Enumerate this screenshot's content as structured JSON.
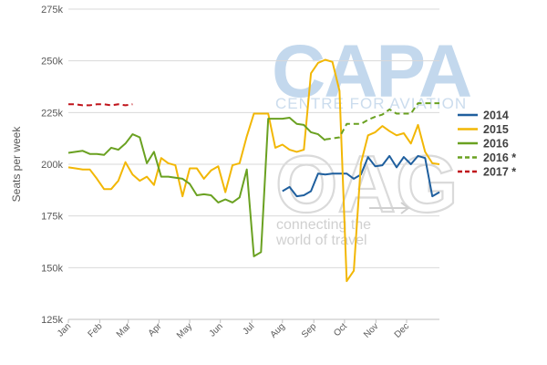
{
  "watermarks": {
    "capa_logo": "CAPA",
    "capa_sub": "CENTRE FOR AVIATION",
    "oag_logo": "OAG",
    "oag_tag_line1": "connecting the",
    "oag_tag_line2": "world of travel"
  },
  "chart_data": {
    "type": "line",
    "title": "",
    "ylabel": "Seats per week",
    "xlabel": "",
    "ylim": [
      125000,
      275000
    ],
    "yticks": [
      125000,
      150000,
      175000,
      200000,
      225000,
      250000,
      275000
    ],
    "ytick_labels": [
      "125k",
      "150k",
      "175k",
      "200k",
      "225k",
      "250k",
      "275k"
    ],
    "x_unit": "week of year",
    "xlim": [
      1,
      53
    ],
    "xticks": [
      1,
      5.4,
      9.4,
      13.7,
      18,
      22.3,
      26.7,
      31,
      35.4,
      39.7,
      44.1,
      48.4
    ],
    "xtick_labels": [
      "Jan",
      "Feb",
      "Mar",
      "Apr",
      "May",
      "Jun",
      "Jul",
      "Aug",
      "Sep",
      "Oct",
      "Nov",
      "Dec"
    ],
    "grid": true,
    "legend_position": "right",
    "series": [
      {
        "name": "2014",
        "color": "#1f5f9e",
        "dash": "solid",
        "weeks": [
          31,
          32,
          33,
          34,
          35,
          36,
          37,
          38,
          39,
          40,
          41,
          42,
          43,
          44,
          45,
          46,
          47,
          48,
          49,
          50,
          51,
          52,
          53
        ],
        "values": [
          187000,
          189000,
          184500,
          185000,
          187000,
          195500,
          195000,
          195500,
          195500,
          195500,
          193000,
          195000,
          203500,
          199000,
          199500,
          204000,
          198500,
          203500,
          200000,
          204000,
          203000,
          184500,
          186500
        ]
      },
      {
        "name": "2015",
        "color": "#f2b705",
        "dash": "solid",
        "weeks": [
          1,
          2,
          3,
          4,
          5,
          6,
          7,
          8,
          9,
          10,
          11,
          12,
          13,
          14,
          15,
          16,
          17,
          18,
          19,
          20,
          21,
          22,
          23,
          24,
          25,
          26,
          27,
          28,
          29,
          30,
          31,
          32,
          33,
          34,
          35,
          36,
          37,
          38,
          39,
          40,
          41,
          42,
          43,
          44,
          45,
          46,
          47,
          48,
          49,
          50,
          51,
          52,
          53
        ],
        "values": [
          198500,
          198000,
          197500,
          197500,
          193000,
          188000,
          188000,
          192000,
          201000,
          195000,
          192000,
          194000,
          190000,
          203000,
          200500,
          199500,
          184500,
          198000,
          198000,
          193000,
          197000,
          199000,
          186500,
          199500,
          200500,
          213500,
          224500,
          224500,
          224500,
          208000,
          209500,
          207000,
          206000,
          207000,
          244000,
          249000,
          250500,
          249500,
          235500,
          143500,
          148500,
          200500,
          214000,
          215500,
          218500,
          216000,
          214000,
          215000,
          210000,
          219000,
          206000,
          200500,
          200000
        ]
      },
      {
        "name": "2016",
        "color": "#6aa121",
        "dash": "solid",
        "weeks": [
          1,
          2,
          3,
          4,
          5,
          6,
          7,
          8,
          9,
          10,
          11,
          12,
          13,
          14,
          15,
          16,
          17,
          18,
          19,
          20,
          21,
          22,
          23,
          24,
          25,
          26,
          27,
          28,
          29,
          30,
          31,
          32,
          33,
          34,
          35,
          36,
          37
        ],
        "values": [
          205500,
          206000,
          206500,
          205000,
          205000,
          204500,
          208000,
          207000,
          210000,
          214500,
          213000,
          200500,
          206000,
          194000,
          194000,
          193500,
          193000,
          190500,
          185000,
          185500,
          185000,
          181500,
          183000,
          181500,
          184000,
          197500,
          155500,
          157500,
          222000,
          222000,
          222000,
          222500,
          219500,
          219000,
          215500,
          214500,
          211500
        ]
      },
      {
        "name": "2016 *",
        "color": "#6aa121",
        "dash": "dashed",
        "weeks": [
          37,
          38,
          39,
          40,
          41,
          42,
          43,
          44,
          45,
          46,
          47,
          48,
          49,
          50,
          51,
          52,
          53
        ],
        "values": [
          212000,
          212500,
          213000,
          219500,
          219500,
          219500,
          221500,
          223000,
          224000,
          226500,
          224500,
          224500,
          224500,
          229500,
          229500,
          229500,
          229500
        ]
      },
      {
        "name": "2017 *",
        "color": "#c0141b",
        "dash": "dashed",
        "weeks": [
          1,
          2,
          3,
          4,
          5,
          6,
          7,
          8,
          9,
          10
        ],
        "values": [
          229000,
          229000,
          228500,
          228500,
          229000,
          229000,
          228500,
          229000,
          228500,
          229000
        ]
      }
    ]
  }
}
